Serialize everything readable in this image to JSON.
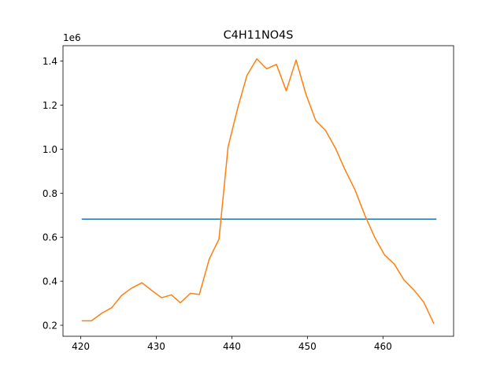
{
  "chart_data": {
    "type": "line",
    "title": "C4H11NO4S",
    "xlabel": "",
    "ylabel": "",
    "y_offset_label": "1e6",
    "xlim": [
      417.65,
      469.35
    ],
    "ylim": [
      0.15,
      1.47
    ],
    "x_ticks": [
      420,
      430,
      440,
      450,
      460
    ],
    "y_ticks": [
      0.2,
      0.4,
      0.6,
      0.8,
      1.0,
      1.2,
      1.4
    ],
    "y_tick_labels": [
      "0.2",
      "0.4",
      "0.6",
      "0.8",
      "1.0",
      "1.2",
      "1.4"
    ],
    "grid": false,
    "series": [
      {
        "color": "#1f77b4",
        "x": [
          420.2,
          467.0
        ],
        "y": [
          0.682,
          0.682
        ]
      },
      {
        "color": "#ff7f0e",
        "x": [
          420.2,
          421.4,
          422.8,
          424.1,
          425.4,
          426.7,
          428.1,
          429.4,
          430.7,
          432.0,
          433.2,
          434.5,
          435.7,
          437.0,
          438.3,
          439.5,
          440.8,
          442.0,
          443.3,
          444.6,
          445.9,
          447.2,
          448.5,
          449.8,
          451.1,
          452.4,
          453.7,
          455.0,
          456.3,
          457.6,
          458.9,
          460.2,
          461.5,
          462.8,
          464.1,
          465.4,
          466.7
        ],
        "y": [
          0.22,
          0.22,
          0.255,
          0.28,
          0.335,
          0.368,
          0.393,
          0.358,
          0.325,
          0.338,
          0.302,
          0.345,
          0.34,
          0.5,
          0.592,
          1.01,
          1.19,
          1.335,
          1.41,
          1.365,
          1.385,
          1.265,
          1.405,
          1.25,
          1.13,
          1.085,
          1.005,
          0.905,
          0.815,
          0.7,
          0.6,
          0.52,
          0.478,
          0.405,
          0.36,
          0.305,
          0.21
        ]
      }
    ]
  }
}
